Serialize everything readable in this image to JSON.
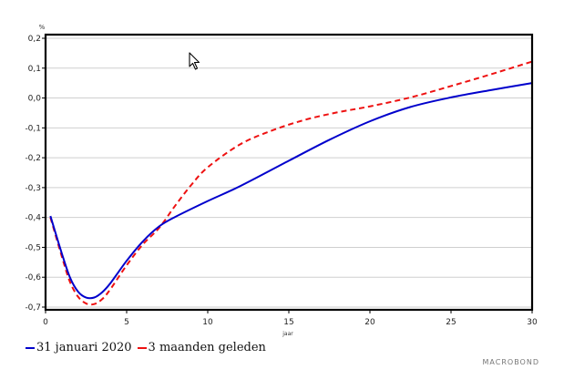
{
  "chart_data": {
    "type": "line",
    "title": "",
    "y_unit": "%",
    "xlabel": "jaar",
    "ylabel": "",
    "xlim": [
      0,
      30
    ],
    "ylim": [
      -0.7,
      0.2
    ],
    "x_ticks": [
      "0",
      "5",
      "10",
      "15",
      "20",
      "25",
      "30"
    ],
    "y_ticks": [
      "0,2",
      "0,1",
      "0,0",
      "-0,1",
      "-0,2",
      "-0,3",
      "-0,4",
      "-0,5",
      "-0,6",
      "-0,7"
    ],
    "grid": true,
    "legend_position": "bottom-left",
    "series": [
      {
        "name": "31 januari 2020",
        "color": "#0000cc",
        "style": "solid",
        "x": [
          0.3,
          1,
          1.5,
          2,
          2.5,
          3,
          3.5,
          4,
          5,
          6,
          7,
          8,
          10,
          12,
          15,
          17.5,
          20,
          22.5,
          25,
          27.5,
          30
        ],
        "y": [
          -0.395,
          -0.52,
          -0.6,
          -0.648,
          -0.668,
          -0.668,
          -0.65,
          -0.62,
          -0.545,
          -0.48,
          -0.43,
          -0.398,
          -0.345,
          -0.295,
          -0.21,
          -0.14,
          -0.078,
          -0.03,
          0.002,
          0.027,
          0.05
        ]
      },
      {
        "name": "3 maanden geleden",
        "color": "#ee1111",
        "style": "dashed",
        "x": [
          0.3,
          1,
          1.5,
          2,
          2.5,
          3,
          3.5,
          4,
          5,
          6,
          7,
          8,
          9,
          10,
          12,
          14,
          16,
          18,
          20,
          22.5,
          25,
          27.5,
          30
        ],
        "y": [
          -0.4,
          -0.53,
          -0.615,
          -0.665,
          -0.688,
          -0.69,
          -0.673,
          -0.64,
          -0.56,
          -0.49,
          -0.435,
          -0.36,
          -0.29,
          -0.232,
          -0.155,
          -0.108,
          -0.073,
          -0.048,
          -0.028,
          0.002,
          0.04,
          0.08,
          0.122
        ]
      }
    ]
  },
  "legend": {
    "item1": "31 januari 2020",
    "item2": "3 maanden geleden"
  },
  "brand": "MACROBOND",
  "icons": {
    "cursor": "mouse-pointer-icon"
  }
}
